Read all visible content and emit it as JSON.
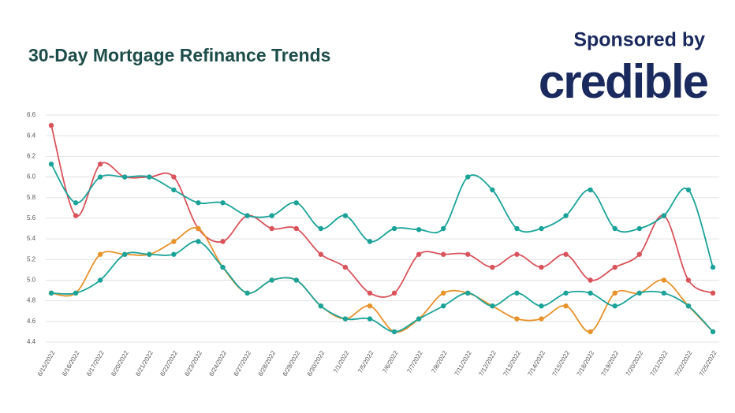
{
  "chart_data": {
    "type": "line",
    "title": "30-Day Mortgage Refinance Trends",
    "sponsor": "Sponsored by",
    "brand": "credible",
    "categories": [
      "6/15/2022",
      "6/16/2022",
      "6/17/2022",
      "6/20/2022",
      "6/21/2022",
      "6/22/2022",
      "6/23/2022",
      "6/24/2022",
      "6/27/2022",
      "6/28/2022",
      "6/29/2022",
      "6/30/2022",
      "7/1/2022",
      "7/5/2022",
      "7/6/2022",
      "7/7/2022",
      "7/8/2022",
      "7/11/2022",
      "7/12/2022",
      "7/13/2022",
      "7/14/2022",
      "7/15/2022",
      "7/18/2022",
      "7/19/2022",
      "7/20/2022",
      "7/21/2022",
      "7/22/2022",
      "7/25/2022"
    ],
    "series": [
      {
        "color": "#d9535b",
        "values": [
          6.5,
          5.625,
          6.125,
          6.0,
          6.0,
          6.0,
          5.5,
          5.375,
          5.625,
          5.5,
          5.5,
          5.25,
          5.125,
          4.875,
          4.875,
          5.25,
          5.25,
          5.25,
          5.125,
          5.25,
          5.125,
          5.25,
          5.0,
          5.125,
          5.25,
          5.625,
          5.0,
          4.875
        ]
      },
      {
        "color": "#1ba39a",
        "values": [
          6.125,
          5.75,
          6.0,
          6.0,
          6.0,
          5.875,
          5.75,
          5.75,
          5.625,
          5.625,
          5.75,
          5.5,
          5.625,
          5.375,
          5.5,
          5.49,
          5.5,
          6.0,
          5.875,
          5.5,
          5.5,
          5.625,
          5.875,
          5.5,
          5.5,
          5.625,
          5.875,
          5.125
        ]
      },
      {
        "color": "#e8922a",
        "values": [
          4.875,
          4.875,
          5.25,
          5.25,
          5.25,
          5.375,
          5.5,
          5.125,
          4.875,
          5.0,
          5.0,
          4.75,
          4.625,
          4.75,
          4.5,
          4.625,
          4.875,
          4.875,
          4.75,
          4.625,
          4.625,
          4.75,
          4.5,
          4.875,
          4.875,
          5.0,
          4.75,
          4.5
        ]
      },
      {
        "color": "#1ba39a",
        "values": [
          4.875,
          4.875,
          5.0,
          5.25,
          5.25,
          5.25,
          5.375,
          5.125,
          4.875,
          5.0,
          5.0,
          4.75,
          4.625,
          4.625,
          4.5,
          4.625,
          4.75,
          4.875,
          4.75,
          4.875,
          4.75,
          4.875,
          4.875,
          4.75,
          4.875,
          4.875,
          4.75,
          4.5
        ]
      }
    ],
    "ylim": [
      4.4,
      6.6
    ],
    "yticks": [
      4.4,
      4.6,
      4.8,
      {
        "value": 5,
        "label": "5.0"
      },
      5.2,
      5.4,
      5.6,
      5.8,
      {
        "value": 6,
        "label": "6.0"
      },
      6.2,
      6.4,
      6.6
    ],
    "grid": true
  }
}
